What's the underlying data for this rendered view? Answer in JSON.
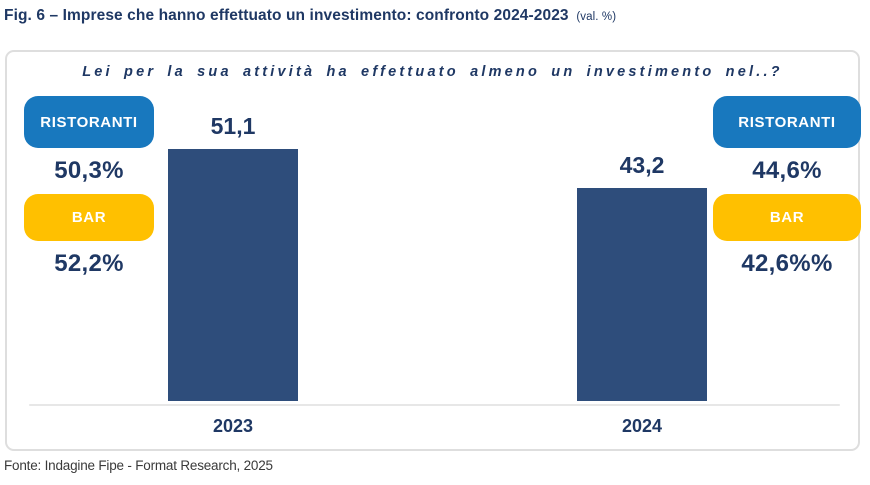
{
  "figure": {
    "title": "Fig. 6 – Imprese che hanno effettuato un investimento: confronto 2024-2023",
    "title_suffix": "(val. %)",
    "source": "Fonte: Indagine Fipe - Format Research, 2025"
  },
  "chart_data": {
    "type": "bar",
    "title": "Lei per la sua attività ha effettuato almeno un investimento nel..?",
    "categories": [
      "2023",
      "2024"
    ],
    "values": [
      51.1,
      43.2
    ],
    "value_labels": [
      "51,1",
      "43,2"
    ],
    "ylim": [
      0,
      60
    ],
    "grid": false,
    "legend_position": "sides",
    "annotations": {
      "left": {
        "ristoranti_label": "RISTORANTI",
        "ristoranti_value": "50,3%",
        "bar_label": "BAR",
        "bar_value": "52,2%"
      },
      "right": {
        "ristoranti_label": "RISTORANTI",
        "ristoranti_value": "44,6%",
        "bar_label": "BAR",
        "bar_value": "42,6%%"
      }
    }
  },
  "colors": {
    "badge_blue": "#1878BE",
    "badge_yellow": "#FFC000",
    "bar_navy": "#2E4D7B",
    "text_navy": "#1F3864",
    "frame_border": "#DEDEDE"
  }
}
